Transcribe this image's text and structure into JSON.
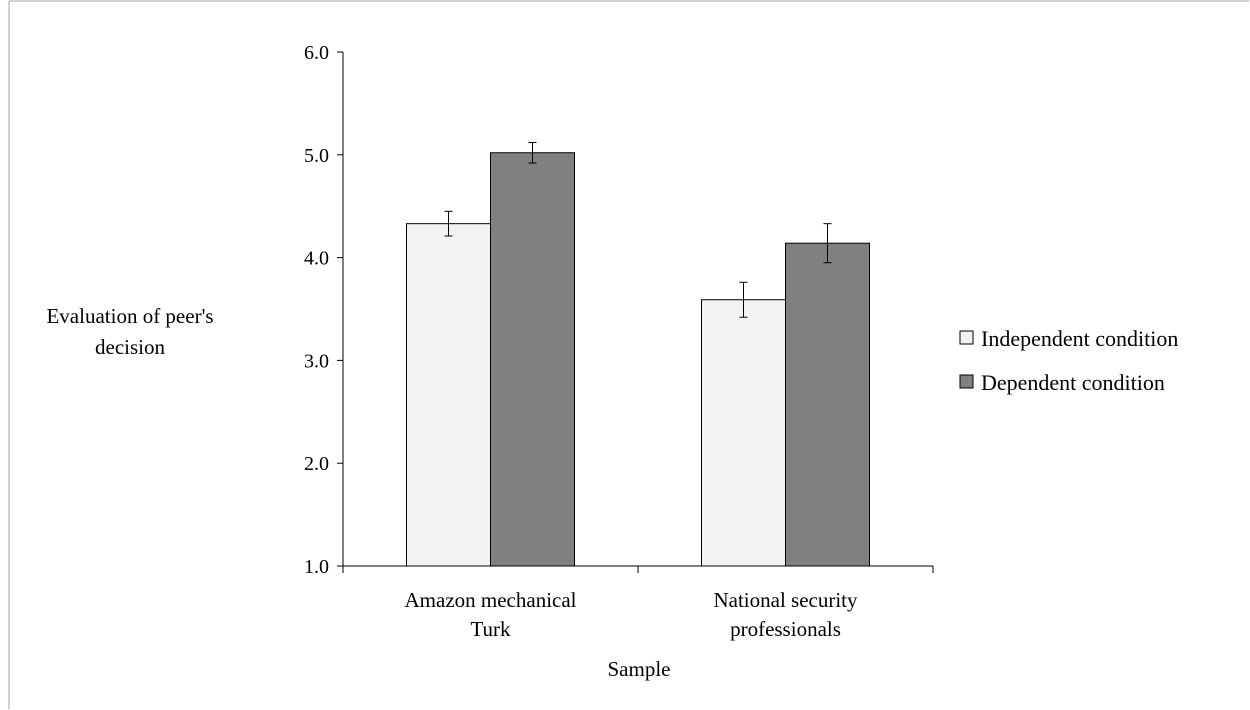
{
  "chart_data": {
    "type": "bar",
    "xlabel": "Sample",
    "ylabel_lines": [
      "Evaluation of peer's",
      "decision"
    ],
    "ylim": [
      1.0,
      6.0
    ],
    "yticks": [
      "1.0",
      "2.0",
      "3.0",
      "4.0",
      "5.0",
      "6.0"
    ],
    "grid": false,
    "legend_position": "right",
    "categories": [
      {
        "lines": [
          "Amazon mechanical",
          "Turk"
        ]
      },
      {
        "lines": [
          "National security",
          "professionals"
        ]
      }
    ],
    "series": [
      {
        "name": "Independent condition",
        "color": "#f2f2f2",
        "values": [
          4.33,
          3.59
        ],
        "errors": [
          0.12,
          0.17
        ]
      },
      {
        "name": "Dependent condition",
        "color": "#808080",
        "values": [
          5.02,
          4.14
        ],
        "errors": [
          0.1,
          0.19
        ]
      }
    ]
  }
}
